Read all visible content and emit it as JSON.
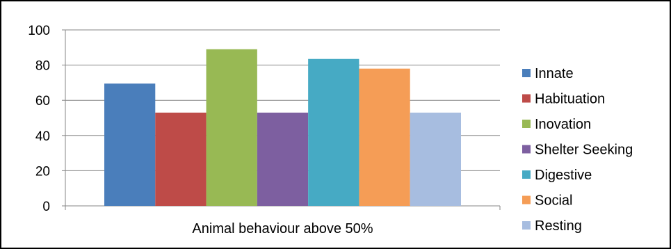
{
  "chart_data": {
    "type": "bar",
    "title": "",
    "xlabel": "",
    "ylabel": "",
    "categories": [
      "Animal behaviour above 50%"
    ],
    "series": [
      {
        "name": "Innate",
        "values": [
          69.5
        ],
        "color": "#4A7EBB"
      },
      {
        "name": "Habituation",
        "values": [
          53
        ],
        "color": "#BE4B48"
      },
      {
        "name": "Inovation",
        "values": [
          89
        ],
        "color": "#98B954"
      },
      {
        "name": "Shelter Seeking",
        "values": [
          53
        ],
        "color": "#7D5FA0"
      },
      {
        "name": "Digestive",
        "values": [
          83.5
        ],
        "color": "#46AAC4"
      },
      {
        "name": "Social",
        "values": [
          78
        ],
        "color": "#F59D56"
      },
      {
        "name": "Resting",
        "values": [
          53
        ],
        "color": "#A7BDE0"
      }
    ],
    "ylim": [
      0,
      100
    ],
    "yticks": [
      "0",
      "20",
      "40",
      "60",
      "80",
      "100"
    ],
    "grid": "horizontal",
    "legend_position": "right"
  }
}
